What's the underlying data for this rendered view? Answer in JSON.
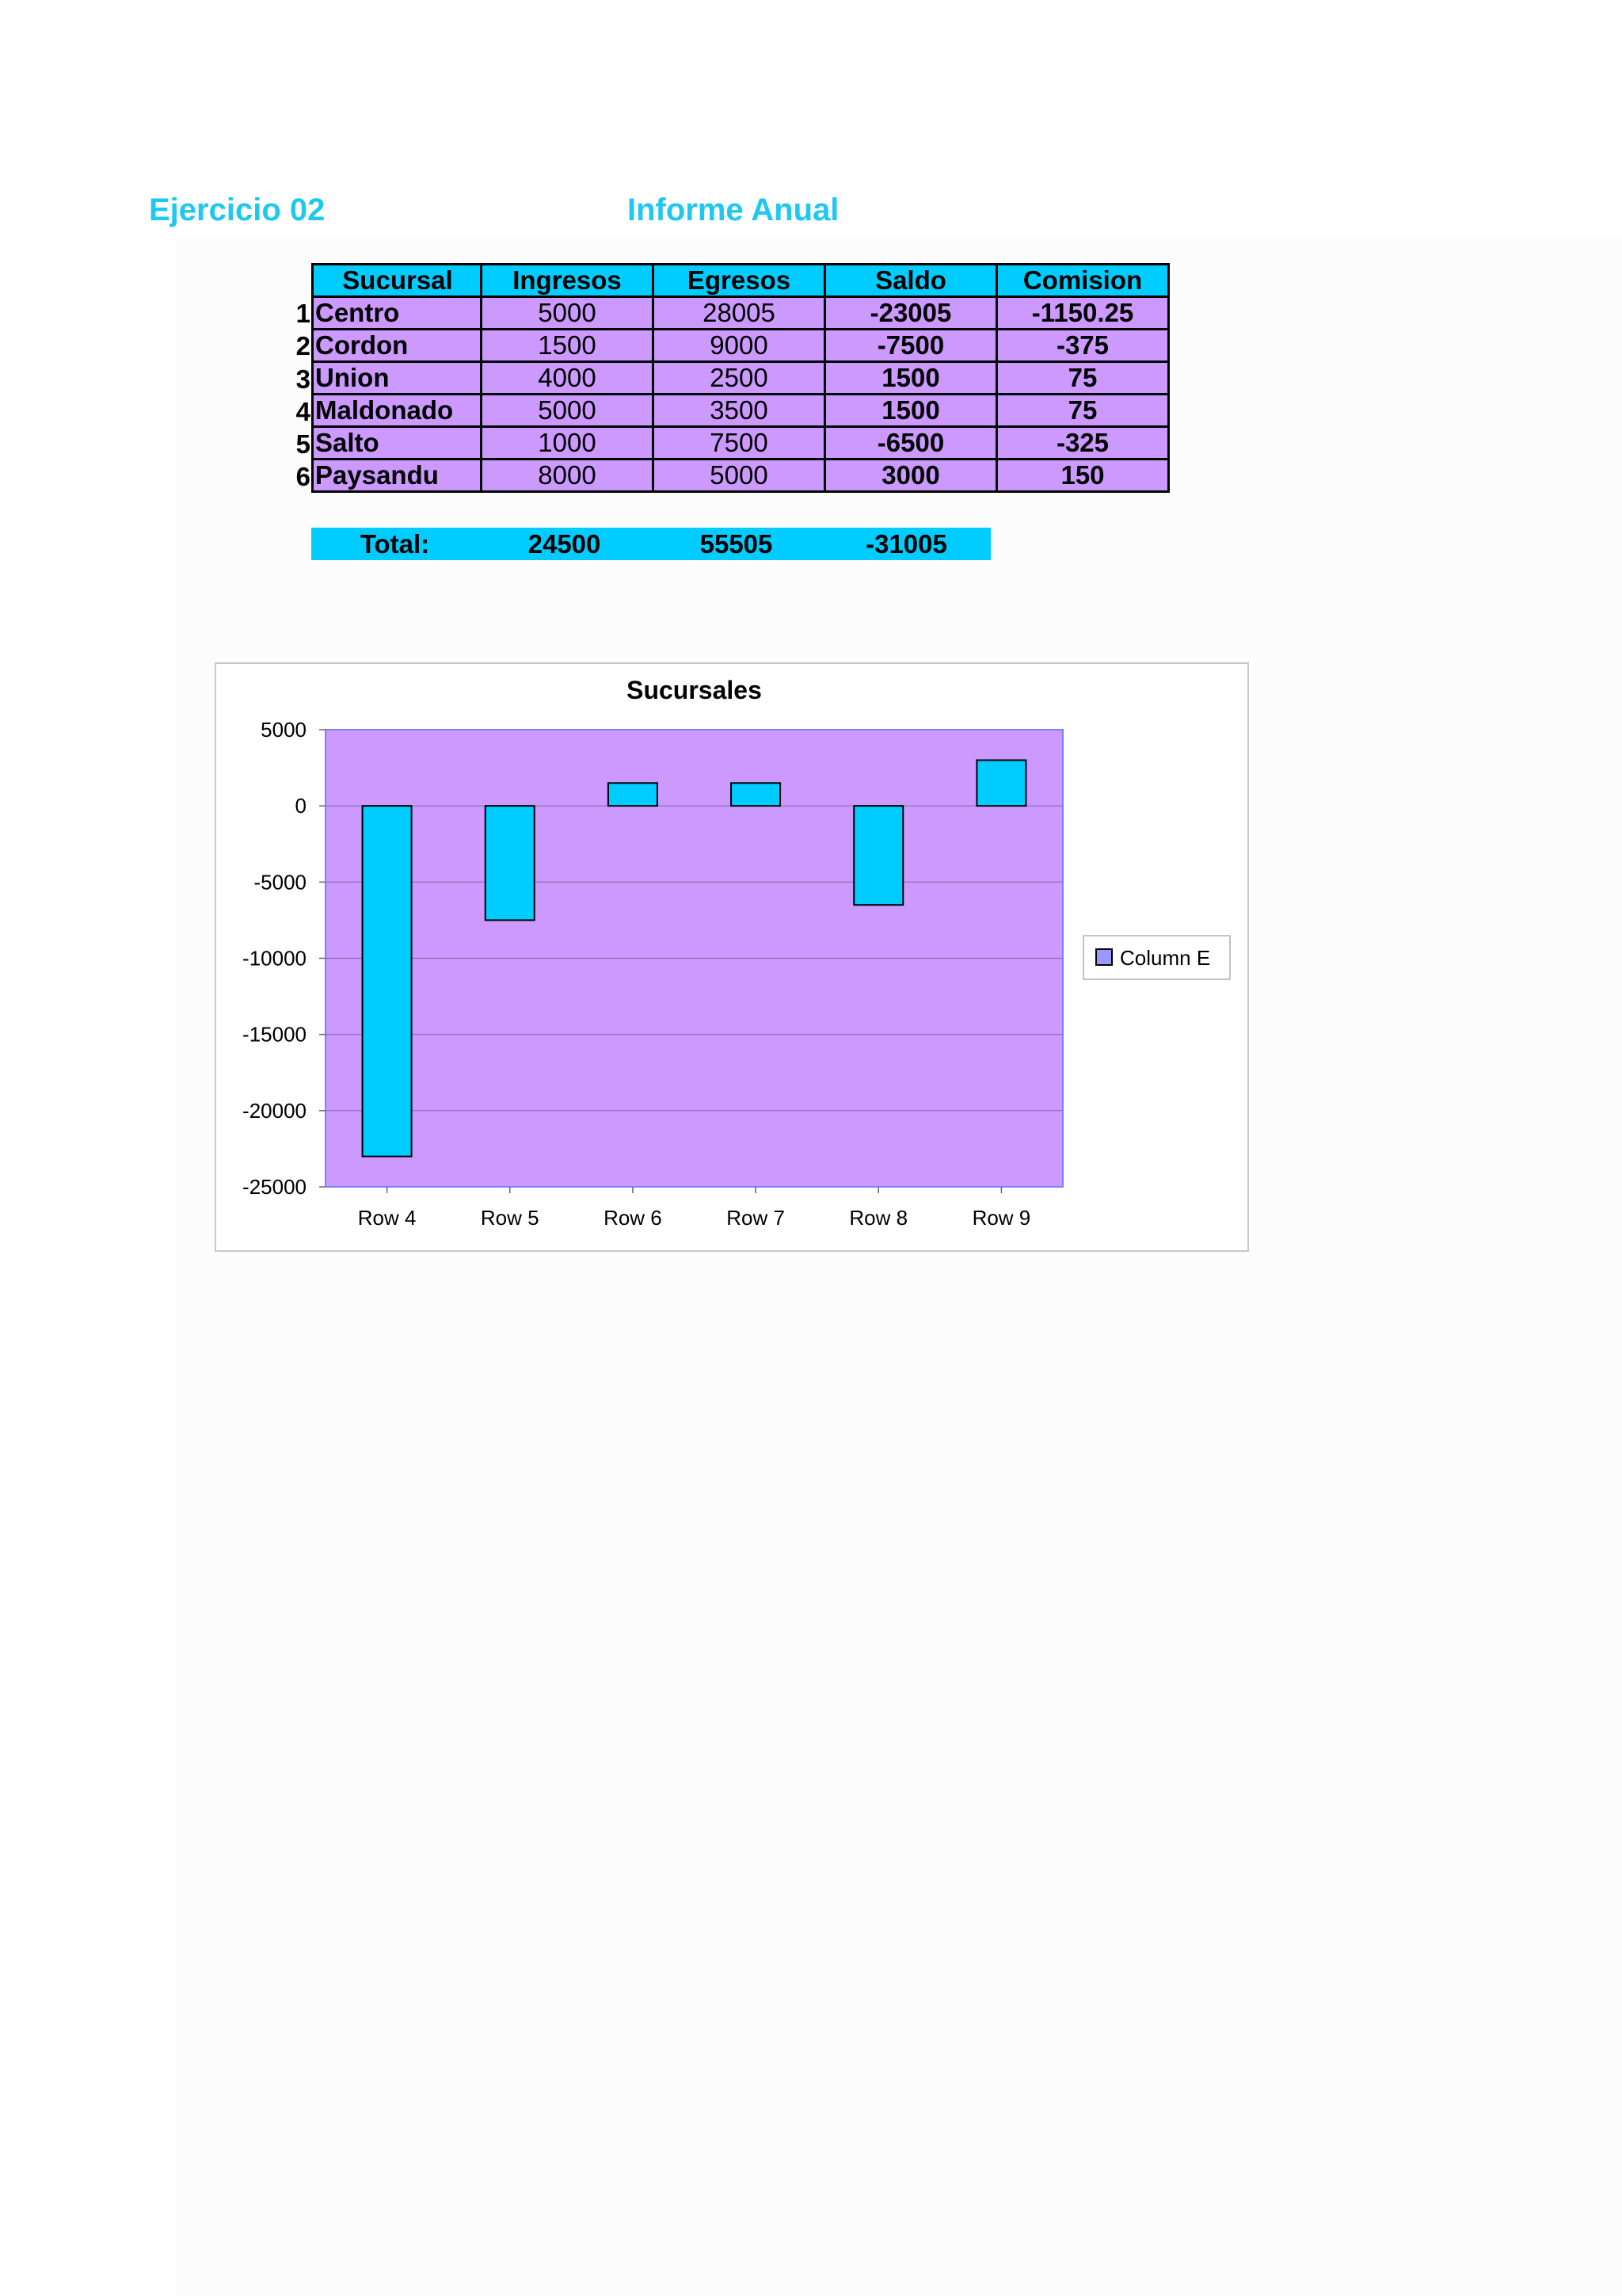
{
  "header": {
    "exercise": "Ejercicio 02",
    "report": "Informe Anual"
  },
  "table": {
    "columns": [
      "Sucursal",
      "Ingresos",
      "Egresos",
      "Saldo",
      "Comision"
    ],
    "rows": [
      {
        "n": "1",
        "sucursal": "Centro",
        "ingresos": "5000",
        "egresos": "28005",
        "saldo": "-23005",
        "comision": "-1150.25"
      },
      {
        "n": "2",
        "sucursal": "Cordon",
        "ingresos": "1500",
        "egresos": "9000",
        "saldo": "-7500",
        "comision": "-375"
      },
      {
        "n": "3",
        "sucursal": "Union",
        "ingresos": "4000",
        "egresos": "2500",
        "saldo": "1500",
        "comision": "75"
      },
      {
        "n": "4",
        "sucursal": "Maldonado",
        "ingresos": "5000",
        "egresos": "3500",
        "saldo": "1500",
        "comision": "75"
      },
      {
        "n": "5",
        "sucursal": "Salto",
        "ingresos": "1000",
        "egresos": "7500",
        "saldo": "-6500",
        "comision": "-325"
      },
      {
        "n": "6",
        "sucursal": "Paysandu",
        "ingresos": "8000",
        "egresos": "5000",
        "saldo": "3000",
        "comision": "150"
      }
    ]
  },
  "totals": {
    "label": "Total:",
    "ingresos": "24500",
    "egresos": "55505",
    "saldo": "-31005"
  },
  "chart_data": {
    "type": "bar",
    "title": "Sucursales",
    "categories": [
      "Row 4",
      "Row 5",
      "Row 6",
      "Row 7",
      "Row 8",
      "Row 9"
    ],
    "series": [
      {
        "name": "Column E",
        "values": [
          -23005,
          -7500,
          1500,
          1500,
          -6500,
          3000
        ]
      }
    ],
    "yticks": [
      "5000",
      "0",
      "-5000",
      "-10000",
      "-15000",
      "-20000",
      "-25000"
    ],
    "ylim": [
      -25000,
      5000
    ],
    "grid": true,
    "legend": "right",
    "colors": {
      "bar_fill": "#00ccff",
      "plot_bg": "#cc99ff",
      "legend_swatch": "#9999ff",
      "gridline": "#8a6bb0"
    }
  }
}
